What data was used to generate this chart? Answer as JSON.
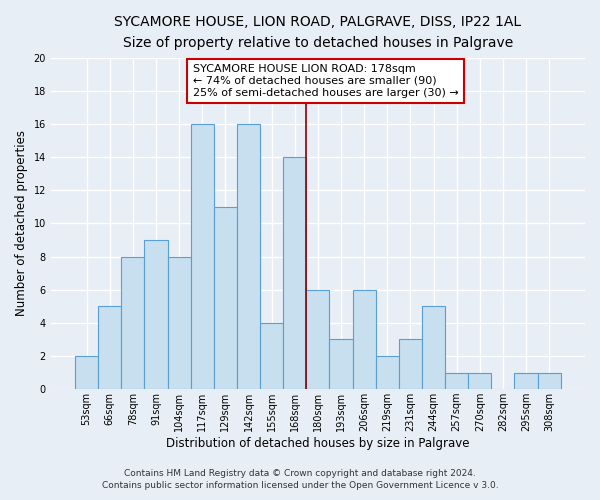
{
  "title": "SYCAMORE HOUSE, LION ROAD, PALGRAVE, DISS, IP22 1AL",
  "subtitle": "Size of property relative to detached houses in Palgrave",
  "xlabel": "Distribution of detached houses by size in Palgrave",
  "ylabel": "Number of detached properties",
  "bin_labels": [
    "53sqm",
    "66sqm",
    "78sqm",
    "91sqm",
    "104sqm",
    "117sqm",
    "129sqm",
    "142sqm",
    "155sqm",
    "168sqm",
    "180sqm",
    "193sqm",
    "206sqm",
    "219sqm",
    "231sqm",
    "244sqm",
    "257sqm",
    "270sqm",
    "282sqm",
    "295sqm",
    "308sqm"
  ],
  "values": [
    2,
    5,
    8,
    9,
    8,
    16,
    11,
    16,
    4,
    14,
    6,
    3,
    6,
    2,
    3,
    5,
    1,
    1,
    0,
    1,
    1
  ],
  "bar_color": "#c8dff0",
  "bar_edge_color": "#5a9fd4",
  "highlight_line_color": "#8b0000",
  "annotation_title": "SYCAMORE HOUSE LION ROAD: 178sqm",
  "annotation_line1": "← 74% of detached houses are smaller (90)",
  "annotation_line2": "25% of semi-detached houses are larger (30) →",
  "annotation_box_color": "white",
  "annotation_box_edge_color": "#cc0000",
  "ylim": [
    0,
    20
  ],
  "yticks": [
    0,
    2,
    4,
    6,
    8,
    10,
    12,
    14,
    16,
    18,
    20
  ],
  "footer_line1": "Contains HM Land Registry data © Crown copyright and database right 2024.",
  "footer_line2": "Contains public sector information licensed under the Open Government Licence v 3.0.",
  "background_color": "#e8eef5",
  "grid_color": "#ffffff",
  "title_fontsize": 10,
  "subtitle_fontsize": 9,
  "axis_label_fontsize": 8.5,
  "tick_fontsize": 7,
  "annotation_fontsize": 8,
  "footer_fontsize": 6.5
}
